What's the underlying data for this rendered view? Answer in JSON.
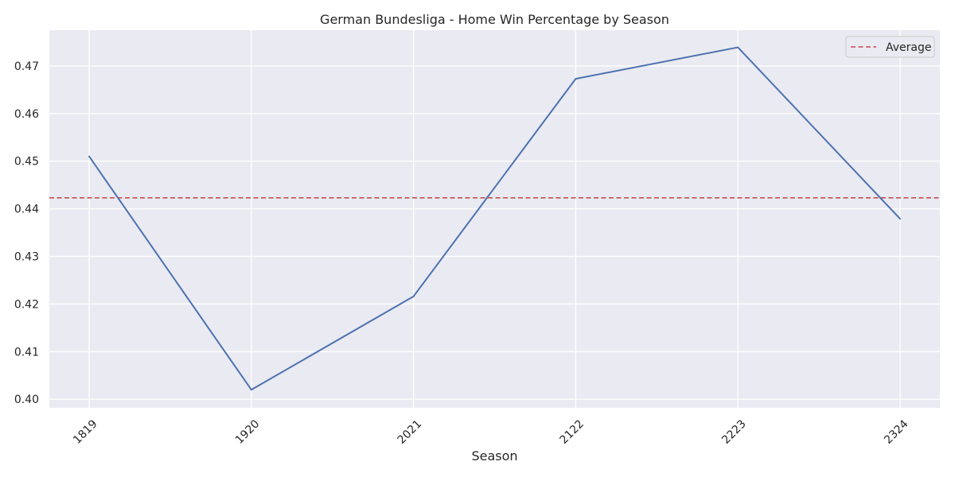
{
  "chart_data": {
    "type": "line",
    "title": "German Bundesliga - Home Win Percentage by Season",
    "xlabel": "Season",
    "ylabel": "",
    "categories": [
      "1819",
      "1920",
      "2021",
      "2122",
      "2223",
      "2324"
    ],
    "series": [
      {
        "values": [
          0.451,
          0.402,
          0.4216,
          0.4673,
          0.4739,
          0.4379
        ],
        "color": "#4c72b0"
      }
    ],
    "reference_line": {
      "name": "Average",
      "value": 0.4423,
      "style": "dashed",
      "color": "#c44e52"
    },
    "ylim": [
      0.3982,
      0.4775
    ],
    "yticks": [
      0.4,
      0.41,
      0.42,
      0.43,
      0.44,
      0.45,
      0.46,
      0.47
    ],
    "ytick_labels": [
      "0.40",
      "0.41",
      "0.42",
      "0.43",
      "0.44",
      "0.45",
      "0.46",
      "0.47"
    ],
    "grid": true,
    "legend_position": "top-right",
    "background_color": "#eaeaf2",
    "grid_color": "#ffffff"
  }
}
